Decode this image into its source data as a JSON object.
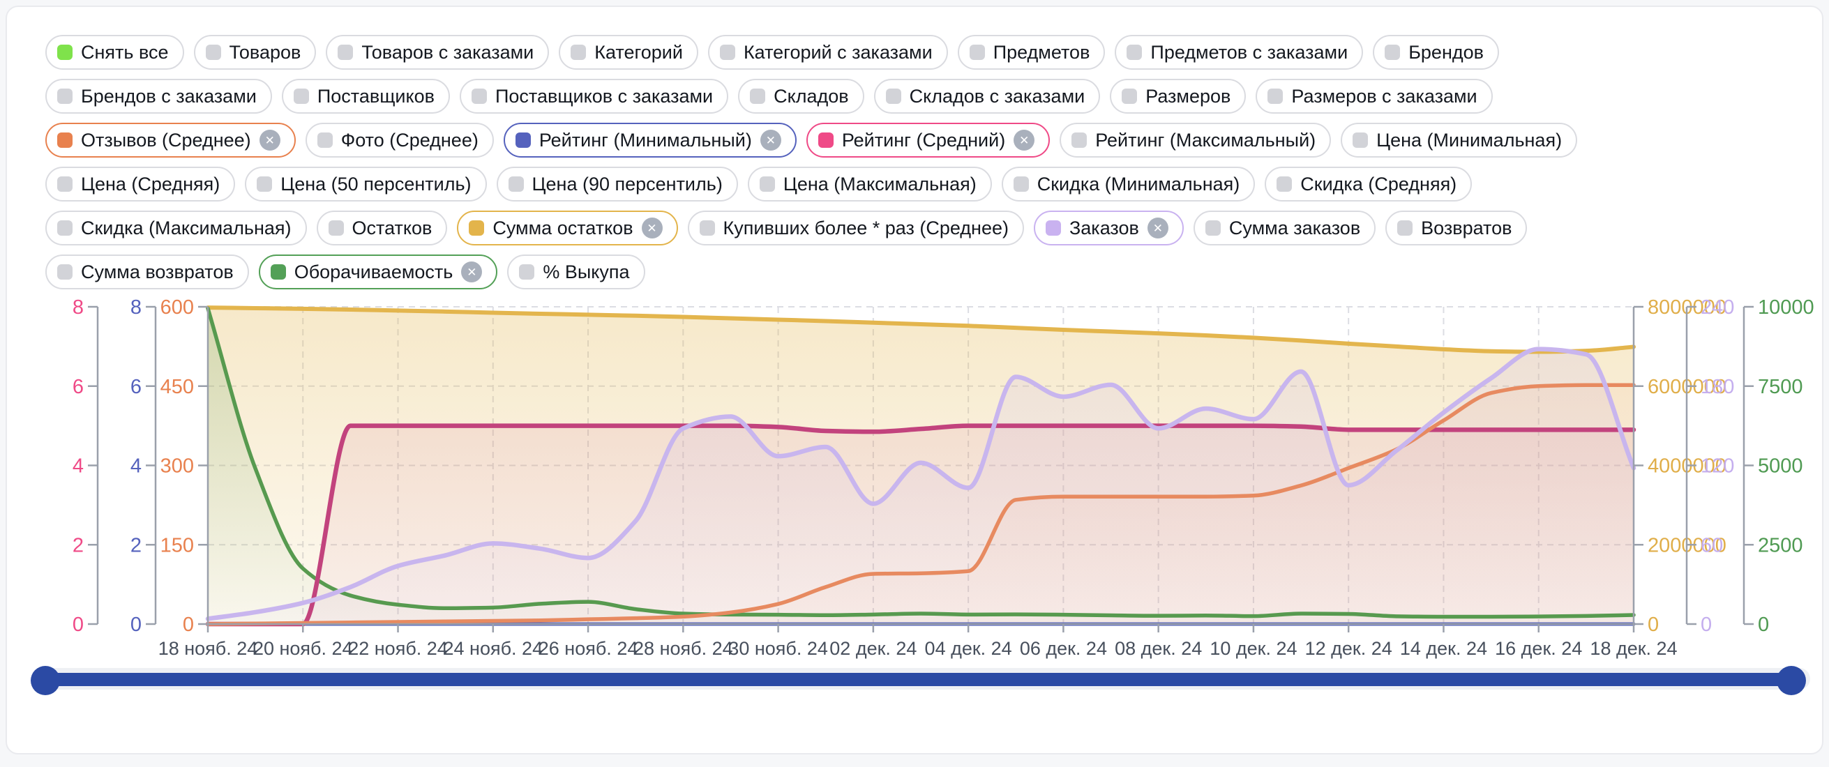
{
  "chips": [
    [
      {
        "label": "Снять все",
        "swatch": "#7fe24b"
      },
      {
        "label": "Товаров"
      },
      {
        "label": "Товаров с заказами"
      },
      {
        "label": "Категорий"
      },
      {
        "label": "Категорий с заказами"
      },
      {
        "label": "Предметов"
      },
      {
        "label": "Предметов с заказами"
      },
      {
        "label": "Брендов"
      }
    ],
    [
      {
        "label": "Брендов с заказами"
      },
      {
        "label": "Поставщиков"
      },
      {
        "label": "Поставщиков с заказами"
      },
      {
        "label": "Складов"
      },
      {
        "label": "Складов с заказами"
      },
      {
        "label": "Размеров"
      },
      {
        "label": "Размеров с заказами"
      }
    ],
    [
      {
        "label": "Отзывов (Среднее)",
        "color": "#e8814e",
        "closable": true
      },
      {
        "label": "Фото (Среднее)"
      },
      {
        "label": "Рейтинг (Минимальный)",
        "color": "#5562bd",
        "closable": true
      },
      {
        "label": "Рейтинг (Средний)",
        "color": "#ef4a87",
        "closable": true
      },
      {
        "label": "Рейтинг (Максимальный)"
      },
      {
        "label": "Цена (Минимальная)"
      }
    ],
    [
      {
        "label": "Цена (Средняя)"
      },
      {
        "label": "Цена (50 персентиль)"
      },
      {
        "label": "Цена (90 персентиль)"
      },
      {
        "label": "Цена (Максимальная)"
      },
      {
        "label": "Скидка (Минимальная)"
      },
      {
        "label": "Скидка (Средняя)"
      }
    ],
    [
      {
        "label": "Скидка (Максимальная)"
      },
      {
        "label": "Остатков"
      },
      {
        "label": "Сумма остатков",
        "color": "#e3b44b",
        "closable": true
      },
      {
        "label": "Купивших более * раз (Среднее)"
      },
      {
        "label": "Заказов",
        "color": "#c9b2f0",
        "closable": true
      },
      {
        "label": "Сумма заказов"
      },
      {
        "label": "Возвратов"
      }
    ],
    [
      {
        "label": "Сумма возвратов"
      },
      {
        "label": "Оборачиваемость",
        "color": "#53a057",
        "closable": true
      },
      {
        "label": "% Выкупа"
      }
    ]
  ],
  "chart_data": {
    "type": "line",
    "x_tick_labels": [
      "18 нояб. 24",
      "20 нояб. 24",
      "22 нояб. 24",
      "24 нояб. 24",
      "26 нояб. 24",
      "28 нояб. 24",
      "30 нояб. 24",
      "02 дек. 24",
      "04 дек. 24",
      "06 дек. 24",
      "08 дек. 24",
      "10 дек. 24",
      "12 дек. 24",
      "14 дек. 24",
      "16 дек. 24",
      "18 дек. 24"
    ],
    "x_days_total": 30,
    "grid": true,
    "axes": {
      "left": [
        {
          "id": "rating_avg_axis",
          "color": "#ef4a87",
          "min": 0,
          "max": 8,
          "ticks": [
            0,
            2,
            4,
            6,
            8
          ]
        },
        {
          "id": "rating_min_axis",
          "color": "#5562bd",
          "min": 0,
          "max": 8,
          "ticks": [
            0,
            2,
            4,
            6,
            8
          ]
        },
        {
          "id": "reviews_axis",
          "color": "#e8814e",
          "min": 0,
          "max": 600,
          "ticks": [
            0,
            150,
            300,
            450,
            600
          ]
        }
      ],
      "right": [
        {
          "id": "stock_sum_axis",
          "color": "#e0ae49",
          "min": 0,
          "max": 8000000,
          "ticks": [
            0,
            2000000,
            4000000,
            6000000,
            8000000
          ]
        },
        {
          "id": "orders_axis",
          "color": "#c4aeee",
          "min": 0,
          "max": 240,
          "ticks": [
            0,
            60,
            120,
            180,
            240
          ]
        },
        {
          "id": "turnover_axis",
          "color": "#4f9a52",
          "min": 0,
          "max": 10000,
          "ticks": [
            0,
            2500,
            5000,
            7500,
            10000
          ]
        }
      ]
    },
    "series": [
      {
        "id": "stock_sum",
        "name": "Сумма остатков",
        "color": "#e3b54d",
        "axis": "stock_sum_axis",
        "values": [
          7980000,
          7965000,
          7950000,
          7930000,
          7905000,
          7880000,
          7850000,
          7825000,
          7800000,
          7775000,
          7745000,
          7710000,
          7675000,
          7640000,
          7600000,
          7560000,
          7520000,
          7470000,
          7420000,
          7375000,
          7330000,
          7280000,
          7220000,
          7150000,
          7070000,
          7000000,
          6930000,
          6880000,
          6865000,
          6890000,
          6990000
        ]
      },
      {
        "id": "turnover",
        "name": "Оборачиваемость",
        "color": "#579a4f",
        "axis": "turnover_axis",
        "values": [
          9950,
          4900,
          1750,
          900,
          610,
          500,
          520,
          640,
          700,
          470,
          330,
          300,
          295,
          280,
          300,
          330,
          300,
          305,
          295,
          275,
          260,
          270,
          250,
          330,
          320,
          245,
          230,
          230,
          240,
          255,
          285
        ]
      },
      {
        "id": "rating_min",
        "name": "Рейтинг (Минимальный)",
        "color": "#5a67bd",
        "axis": "rating_min_axis",
        "values": [
          0,
          0,
          0,
          0,
          0,
          0,
          0,
          0,
          0,
          0,
          0,
          0,
          0,
          0,
          0,
          0,
          0,
          0,
          0,
          0,
          0,
          0,
          0,
          0,
          0,
          0,
          0,
          0,
          0,
          0,
          0
        ]
      },
      {
        "id": "rating_avg",
        "name": "Рейтинг (Средний)",
        "color": "#c2437d",
        "axis": "rating_avg_axis",
        "values": [
          0,
          0,
          0,
          5,
          5,
          5,
          5,
          5,
          5,
          5,
          5,
          5,
          4.97,
          4.87,
          4.85,
          4.92,
          5,
          5,
          5,
          5,
          5,
          5,
          5,
          4.98,
          4.9,
          4.9,
          4.9,
          4.9,
          4.9,
          4.9,
          4.9
        ]
      },
      {
        "id": "reviews_avg",
        "name": "Отзывов (Среднее)",
        "color": "#e78a60",
        "axis": "reviews_axis",
        "values": [
          0,
          1,
          2,
          3,
          4,
          5,
          6,
          7,
          9,
          11,
          14,
          22,
          38,
          70,
          95,
          96,
          100,
          235,
          241,
          241,
          241,
          241,
          243,
          262,
          295,
          330,
          385,
          437,
          450,
          452,
          452
        ]
      },
      {
        "id": "orders",
        "name": "Заказов",
        "color": "#c8b5ee",
        "axis": "orders_axis",
        "values": [
          4,
          9,
          16,
          28,
          44,
          52,
          61,
          57,
          50,
          78,
          148,
          157,
          127,
          134,
          91,
          122,
          103,
          187,
          172,
          181,
          148,
          163,
          155,
          191,
          105,
          131,
          160,
          186,
          208,
          204,
          118
        ]
      }
    ]
  },
  "slider": {
    "fill_color": "#2b4aa4",
    "track_color": "#eef0f4",
    "handle_color": "#2b4aa4",
    "range_start_pct": 0,
    "range_end_pct": 100
  },
  "colors": {
    "grid": "#dcdde3",
    "axis_line": "#9aa0ab",
    "x_label": "#474f5c",
    "chip_border_default": "#dadbe0",
    "chip_swatch_default": "#d2d3d8",
    "close_icon_bg": "#a9b0bc"
  }
}
